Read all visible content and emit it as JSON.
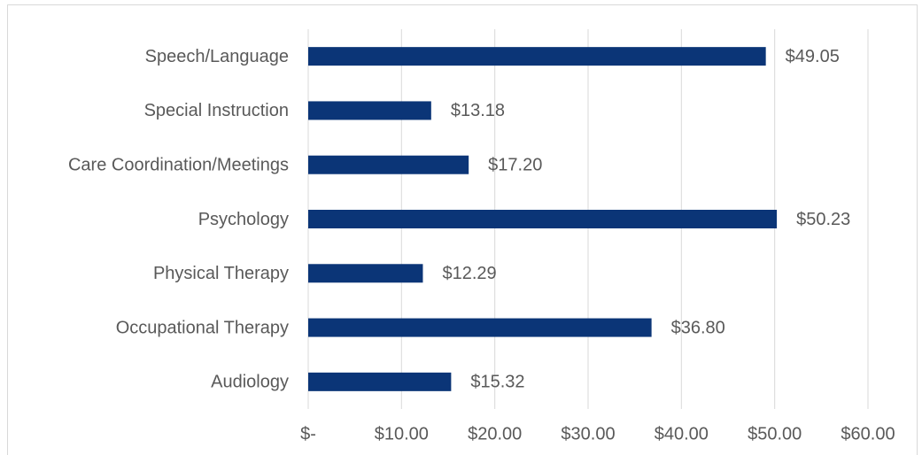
{
  "chart_data": {
    "type": "bar",
    "orientation": "horizontal",
    "categories": [
      "Speech/Language",
      "Special Instruction",
      "Care Coordination/Meetings",
      "Psychology",
      "Physical Therapy",
      "Occupational Therapy",
      "Audiology"
    ],
    "values": [
      49.05,
      13.18,
      17.2,
      50.23,
      12.29,
      36.8,
      15.32
    ],
    "value_labels": [
      "$49.05",
      "$13.18",
      "$17.20",
      "$50.23",
      "$12.29",
      "$36.80",
      "$15.32"
    ],
    "color": "#0b3577",
    "xlim": [
      0,
      60
    ],
    "xticks": [
      {
        "value": 0,
        "label": "$-"
      },
      {
        "value": 10,
        "label": "$10.00"
      },
      {
        "value": 20,
        "label": "$20.00"
      },
      {
        "value": 30,
        "label": "$30.00"
      },
      {
        "value": 40,
        "label": "$40.00"
      },
      {
        "value": 50,
        "label": "$50.00"
      },
      {
        "value": 60,
        "label": "$60.00"
      }
    ],
    "grid": true
  }
}
